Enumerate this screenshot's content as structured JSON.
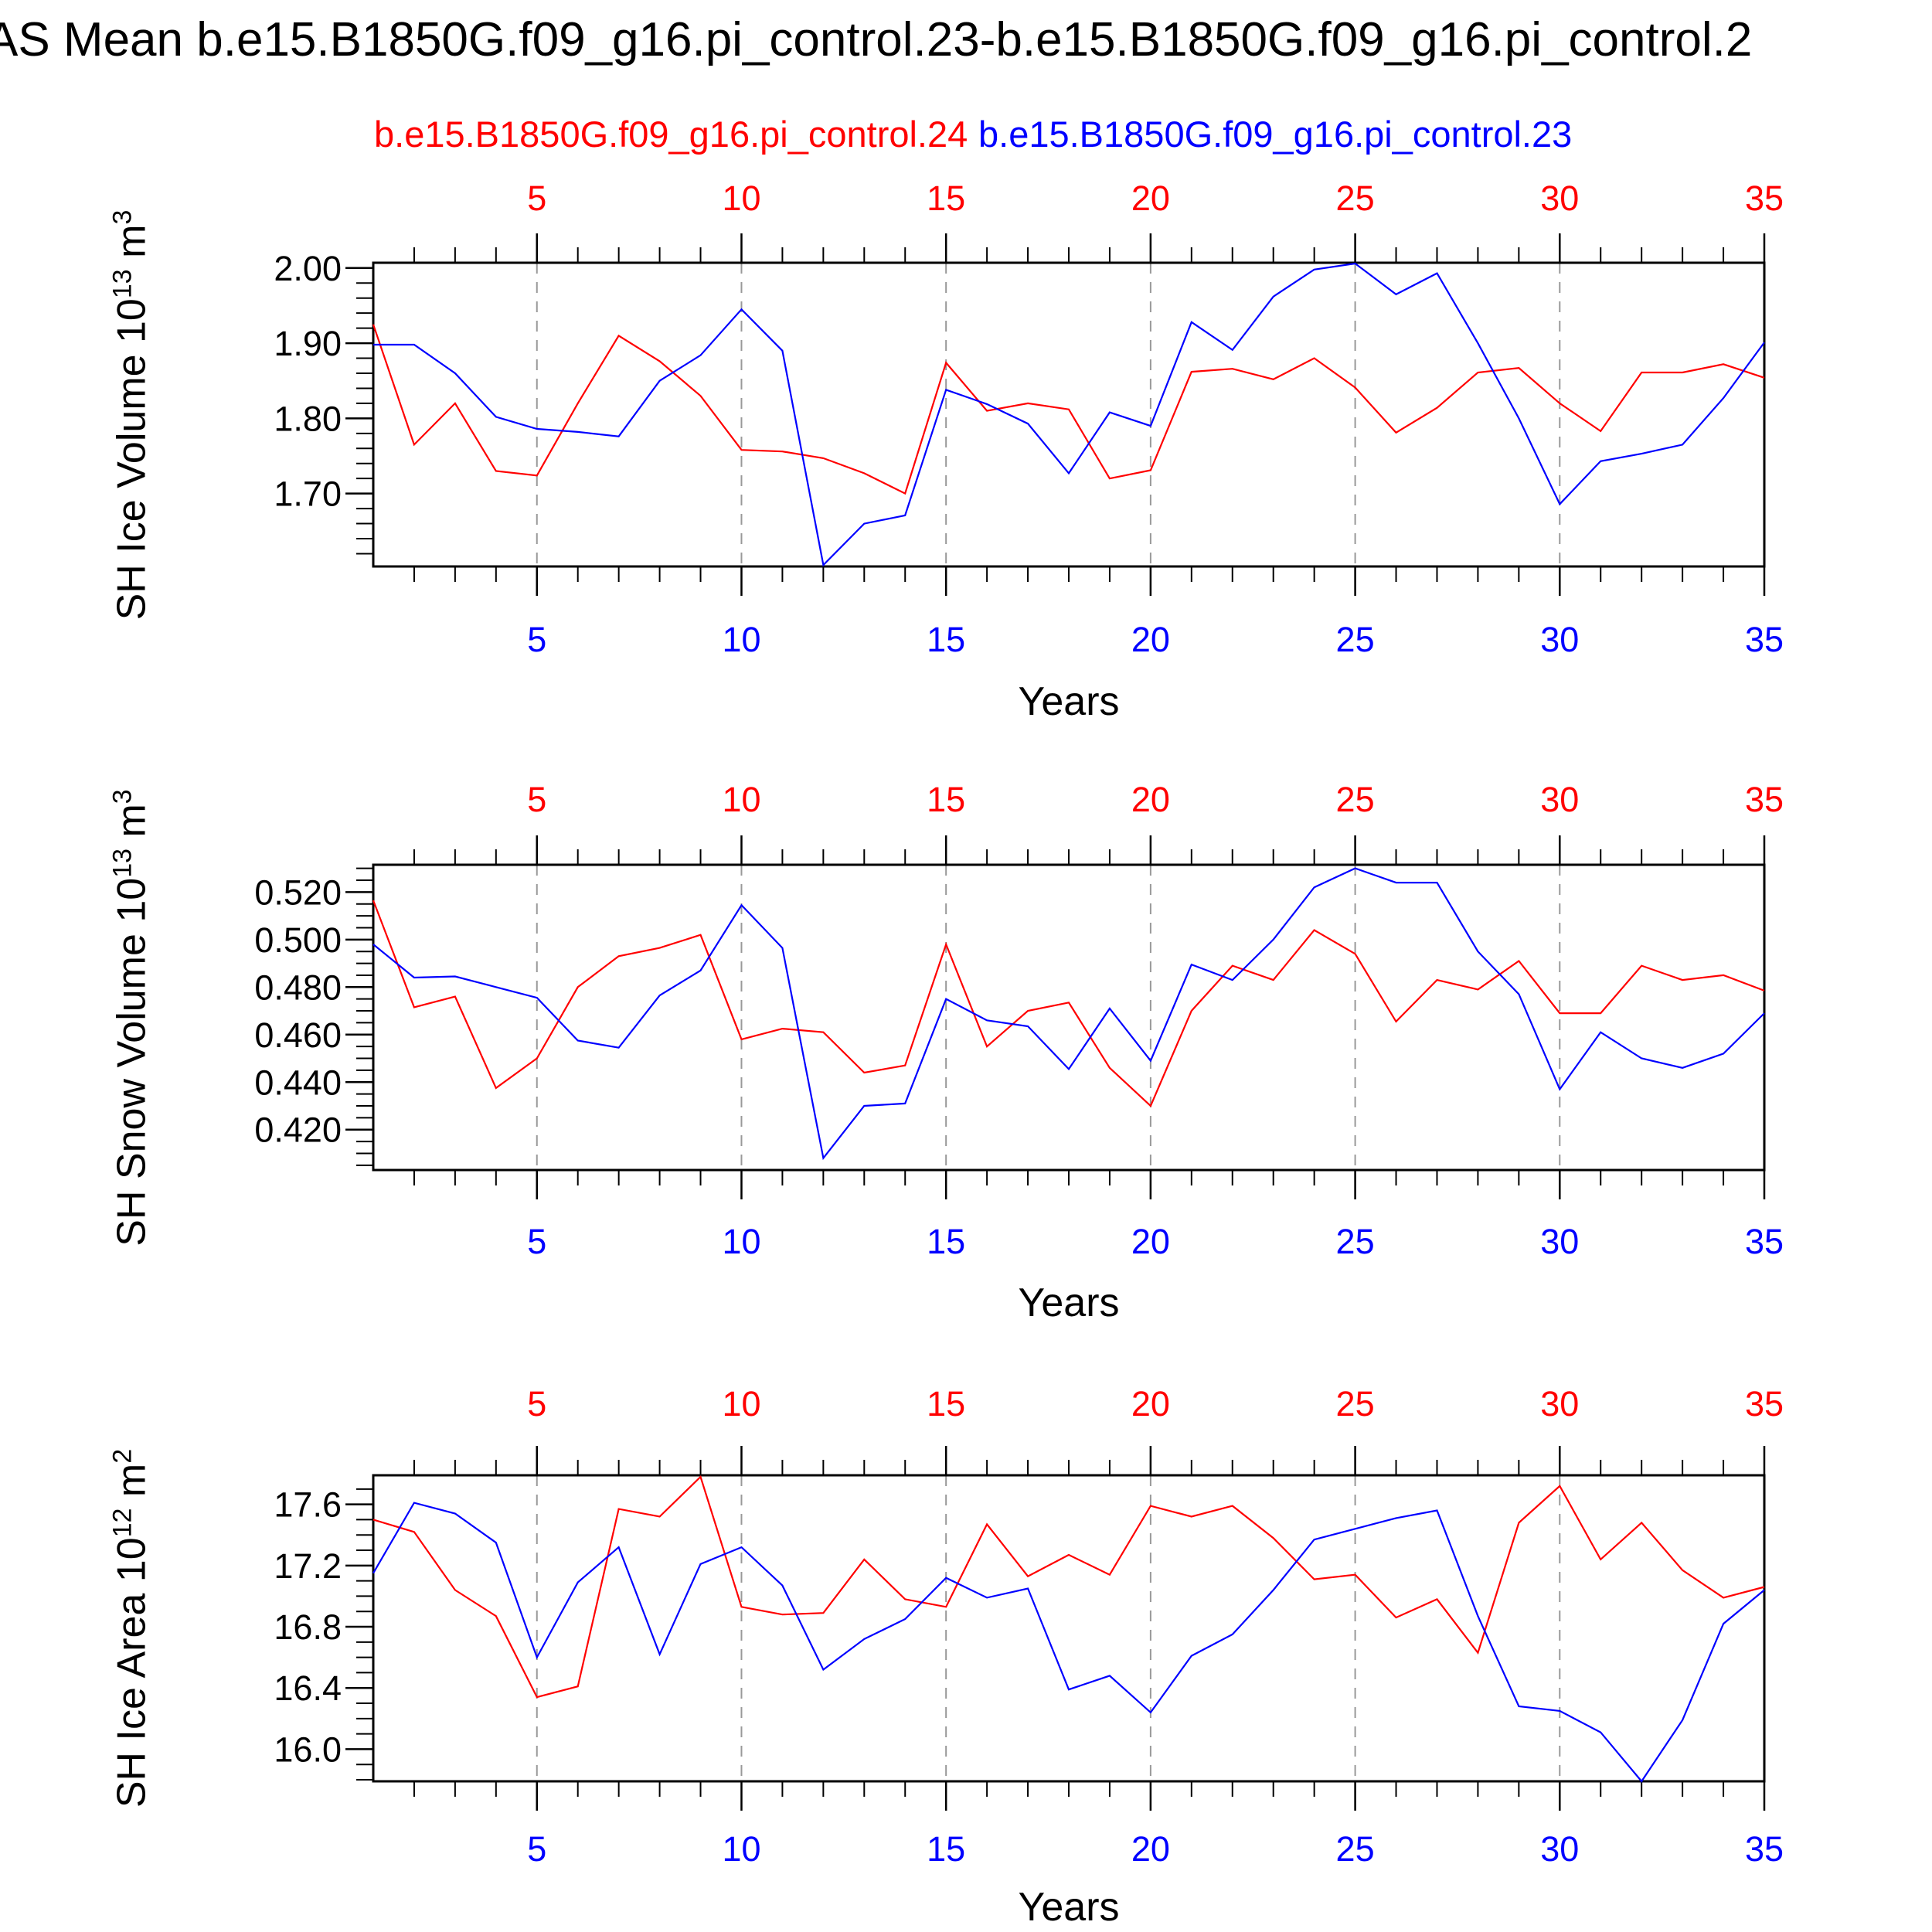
{
  "title": "AS Mean b.e15.B1850G.f09_g16.pi_control.23-b.e15.B1850G.f09_g16.pi_control.2",
  "legend": {
    "red_label": "b.e15.B1850G.f09_g16.pi_control.24",
    "blue_label": "b.e15.B1850G.f09_g16.pi_control.23"
  },
  "colors": {
    "red": "#ff0000",
    "blue": "#0000ff",
    "grid": "#999999",
    "axis": "#000000"
  },
  "xaxis": {
    "label": "Years",
    "range": [
      1,
      35
    ],
    "major_ticks": [
      5,
      10,
      15,
      20,
      25,
      30,
      35
    ],
    "grid_years": [
      5,
      10,
      15,
      20,
      25,
      30
    ]
  },
  "chart_data": [
    {
      "id": "sh-ice-volume",
      "type": "line",
      "ylabel_base": "SH Ice Volume 10",
      "ylabel_exp": "13",
      "ylabel_unit": " m",
      "ylabel_unit_exp": "3",
      "xlabel": "Years",
      "ylim": [
        1.603,
        2.007
      ],
      "yticks": [
        {
          "v": 2.0,
          "label": "2.00"
        },
        {
          "v": 1.9,
          "label": "1.90"
        },
        {
          "v": 1.8,
          "label": "1.80"
        },
        {
          "v": 1.7,
          "label": "1.70"
        }
      ],
      "minor_step": 0.02,
      "series": [
        {
          "id": "pi-control-24",
          "name": "b.e15.B1850G.f09_g16.pi_control.24",
          "color": "red",
          "values": [
            1.925,
            1.765,
            1.82,
            1.73,
            1.724,
            1.82,
            1.91,
            1.876,
            1.83,
            1.758,
            1.756,
            1.747,
            1.727,
            1.7,
            1.874,
            1.81,
            1.82,
            1.812,
            1.72,
            1.731,
            1.862,
            1.866,
            1.852,
            1.88,
            1.841,
            1.781,
            1.814,
            1.861,
            1.867,
            1.82,
            1.783,
            1.861,
            1.861,
            1.872,
            1.854
          ]
        },
        {
          "id": "pi-control-23",
          "name": "b.e15.B1850G.f09_g16.pi_control.23",
          "color": "blue",
          "values": [
            1.898,
            1.898,
            1.86,
            1.802,
            1.786,
            1.782,
            1.776,
            1.85,
            1.884,
            1.945,
            1.89,
            1.605,
            1.66,
            1.671,
            1.838,
            1.819,
            1.793,
            1.727,
            1.808,
            1.79,
            1.928,
            1.891,
            1.962,
            1.998,
            2.006,
            1.965,
            1.993,
            1.9,
            1.8,
            1.686,
            1.743,
            1.753,
            1.765,
            1.827,
            1.901
          ]
        }
      ]
    },
    {
      "id": "sh-snow-volume",
      "type": "line",
      "ylabel_base": "SH Snow Volume 10",
      "ylabel_exp": "13",
      "ylabel_unit": " m",
      "ylabel_unit_exp": "3",
      "xlabel": "Years",
      "ylim": [
        0.403,
        0.5315
      ],
      "yticks": [
        {
          "v": 0.52,
          "label": "0.520"
        },
        {
          "v": 0.5,
          "label": "0.500"
        },
        {
          "v": 0.48,
          "label": "0.480"
        },
        {
          "v": 0.46,
          "label": "0.460"
        },
        {
          "v": 0.44,
          "label": "0.440"
        },
        {
          "v": 0.42,
          "label": "0.420"
        }
      ],
      "minor_step": 0.005,
      "series": [
        {
          "id": "pi-control-24",
          "name": "b.e15.B1850G.f09_g16.pi_control.24",
          "color": "red",
          "values": [
            0.5165,
            0.4715,
            0.476,
            0.4375,
            0.45,
            0.48,
            0.493,
            0.4965,
            0.502,
            0.458,
            0.4625,
            0.461,
            0.444,
            0.447,
            0.498,
            0.455,
            0.47,
            0.4735,
            0.446,
            0.43,
            0.47,
            0.489,
            0.483,
            0.504,
            0.494,
            0.4655,
            0.483,
            0.479,
            0.491,
            0.469,
            0.469,
            0.489,
            0.483,
            0.485,
            0.4785
          ]
        },
        {
          "id": "pi-control-23",
          "name": "b.e15.B1850G.f09_g16.pi_control.23",
          "color": "blue",
          "values": [
            0.498,
            0.484,
            0.4845,
            0.48,
            0.4755,
            0.4575,
            0.4545,
            0.4765,
            0.487,
            0.5145,
            0.4965,
            0.408,
            0.43,
            0.431,
            0.475,
            0.466,
            0.4635,
            0.4455,
            0.471,
            0.449,
            0.4895,
            0.483,
            0.5,
            0.522,
            0.53,
            0.524,
            0.524,
            0.495,
            0.477,
            0.437,
            0.461,
            0.45,
            0.446,
            0.452,
            0.469
          ]
        }
      ]
    },
    {
      "id": "sh-ice-area",
      "type": "line",
      "ylabel_base": "SH Ice Area 10",
      "ylabel_exp": "12",
      "ylabel_unit": " m",
      "ylabel_unit_exp": "2",
      "xlabel": "Years",
      "ylim": [
        15.79,
        17.79
      ],
      "yticks": [
        {
          "v": 17.6,
          "label": "17.6"
        },
        {
          "v": 17.2,
          "label": "17.2"
        },
        {
          "v": 16.8,
          "label": "16.8"
        },
        {
          "v": 16.4,
          "label": "16.4"
        },
        {
          "v": 16.0,
          "label": "16.0"
        }
      ],
      "minor_step": 0.1,
      "series": [
        {
          "id": "pi-control-24",
          "name": "b.e15.B1850G.f09_g16.pi_control.24",
          "color": "red",
          "values": [
            17.5,
            17.42,
            17.04,
            16.87,
            16.34,
            16.41,
            17.57,
            17.52,
            17.78,
            16.93,
            16.88,
            16.89,
            17.24,
            16.98,
            16.93,
            17.47,
            17.13,
            17.27,
            17.14,
            17.59,
            17.52,
            17.59,
            17.38,
            17.11,
            17.14,
            16.86,
            16.98,
            16.63,
            17.48,
            17.72,
            17.24,
            17.48,
            17.17,
            16.99,
            17.06
          ]
        },
        {
          "id": "pi-control-23",
          "name": "b.e15.B1850G.f09_g16.pi_control.23",
          "color": "blue",
          "values": [
            17.15,
            17.61,
            17.54,
            17.35,
            16.6,
            17.09,
            17.32,
            16.62,
            17.21,
            17.32,
            17.07,
            16.52,
            16.72,
            16.85,
            17.12,
            16.99,
            17.05,
            16.39,
            16.48,
            16.24,
            16.61,
            16.75,
            17.04,
            17.37,
            17.44,
            17.51,
            17.56,
            16.87,
            16.28,
            16.25,
            16.11,
            15.79,
            16.19,
            16.82,
            17.04
          ]
        }
      ]
    }
  ]
}
